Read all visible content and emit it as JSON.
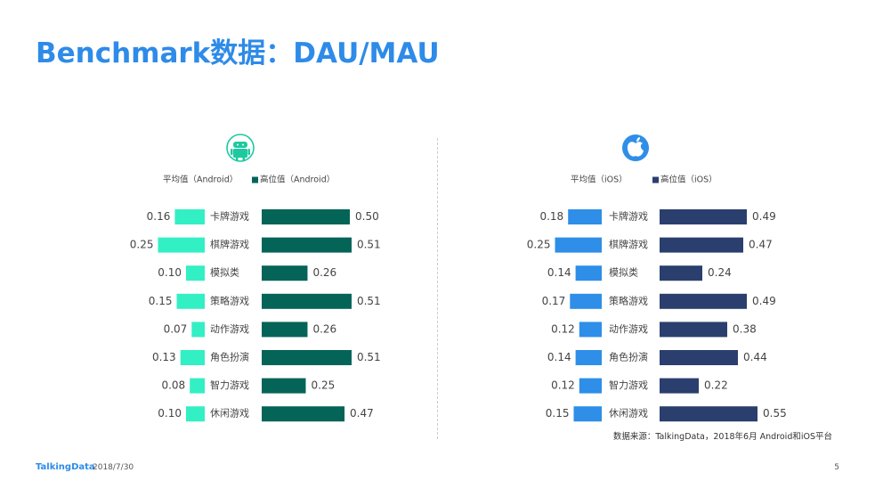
{
  "page": {
    "title": "Benchmark数据：DAU/MAU",
    "source_note": "数据来源：TalkingData，2018年6月 Android和iOS平台",
    "footer_brand": "TalkingData",
    "footer_date": "2018/7/30",
    "page_number": "5"
  },
  "colors": {
    "title": "#2e8be8",
    "android_avg": "#33efc4",
    "android_high": "#046457",
    "ios_avg": "#2e8ee8",
    "ios_high": "#2b3f6e"
  },
  "icons": {
    "android": "android-robot-icon",
    "ios": "apple-icon"
  },
  "chart_data": [
    {
      "type": "bar",
      "platform": "Android",
      "categories": [
        "卡牌游戏",
        "棋牌游戏",
        "模拟类",
        "策略游戏",
        "动作游戏",
        "角色扮演",
        "智力游戏",
        "休闲游戏"
      ],
      "series": [
        {
          "name": "平均值（Android）",
          "values": [
            0.16,
            0.25,
            0.1,
            0.15,
            0.07,
            0.13,
            0.08,
            0.1
          ],
          "value_labels": [
            "0.16",
            "0.25",
            "0.10",
            "0.15",
            "0.07",
            "0.13",
            "0.08",
            "0.10"
          ]
        },
        {
          "name": "高位值（Android）",
          "values": [
            0.5,
            0.51,
            0.26,
            0.51,
            0.26,
            0.51,
            0.25,
            0.47
          ],
          "value_labels": [
            "0.50",
            "0.51",
            "0.26",
            "0.51",
            "0.26",
            "0.51",
            "0.25",
            "0.47"
          ]
        }
      ],
      "legend_position": "top",
      "grid": false,
      "layout": "butterfly"
    },
    {
      "type": "bar",
      "platform": "iOS",
      "categories": [
        "卡牌游戏",
        "棋牌游戏",
        "模拟类",
        "策略游戏",
        "动作游戏",
        "角色扮演",
        "智力游戏",
        "休闲游戏"
      ],
      "series": [
        {
          "name": "平均值（iOS）",
          "values": [
            0.18,
            0.25,
            0.14,
            0.17,
            0.12,
            0.14,
            0.12,
            0.15
          ],
          "value_labels": [
            "0.18",
            "0.25",
            "0.14",
            "0.17",
            "0.12",
            "0.14",
            "0.12",
            "0.15"
          ]
        },
        {
          "name": "高位值（iOS）",
          "values": [
            0.49,
            0.47,
            0.24,
            0.49,
            0.38,
            0.44,
            0.22,
            0.55
          ],
          "value_labels": [
            "0.49",
            "0.47",
            "0.24",
            "0.49",
            "0.38",
            "0.44",
            "0.22",
            "0.55"
          ]
        }
      ],
      "legend_position": "top",
      "grid": false,
      "layout": "butterfly"
    }
  ]
}
